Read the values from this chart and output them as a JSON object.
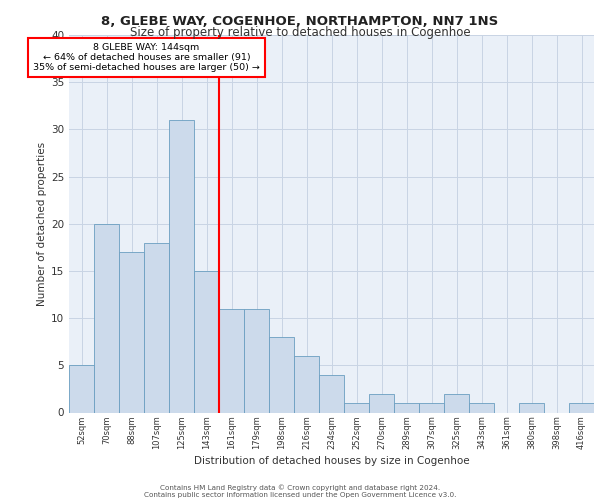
{
  "title1": "8, GLEBE WAY, COGENHOE, NORTHAMPTON, NN7 1NS",
  "title2": "Size of property relative to detached houses in Cogenhoe",
  "xlabel": "Distribution of detached houses by size in Cogenhoe",
  "ylabel": "Number of detached properties",
  "bar_labels": [
    "52sqm",
    "70sqm",
    "88sqm",
    "107sqm",
    "125sqm",
    "143sqm",
    "161sqm",
    "179sqm",
    "198sqm",
    "216sqm",
    "234sqm",
    "252sqm",
    "270sqm",
    "289sqm",
    "307sqm",
    "325sqm",
    "343sqm",
    "361sqm",
    "380sqm",
    "398sqm",
    "416sqm"
  ],
  "bar_values": [
    5,
    20,
    17,
    18,
    31,
    15,
    11,
    11,
    8,
    6,
    4,
    1,
    2,
    1,
    1,
    2,
    1,
    0,
    1,
    0,
    1
  ],
  "bar_color": "#ccdaeb",
  "bar_edge_color": "#6a9ec0",
  "red_line_index": 5.5,
  "annotation_line1": "8 GLEBE WAY: 144sqm",
  "annotation_line2": "← 64% of detached houses are smaller (91)",
  "annotation_line3": "35% of semi-detached houses are larger (50) →",
  "annotation_box_color": "white",
  "annotation_box_edgecolor": "red",
  "vline_color": "red",
  "grid_color": "#c8d4e4",
  "bg_color": "#eaf0f8",
  "footer1": "Contains HM Land Registry data © Crown copyright and database right 2024.",
  "footer2": "Contains public sector information licensed under the Open Government Licence v3.0.",
  "ylim": [
    0,
    40
  ],
  "yticks": [
    0,
    5,
    10,
    15,
    20,
    25,
    30,
    35,
    40
  ]
}
